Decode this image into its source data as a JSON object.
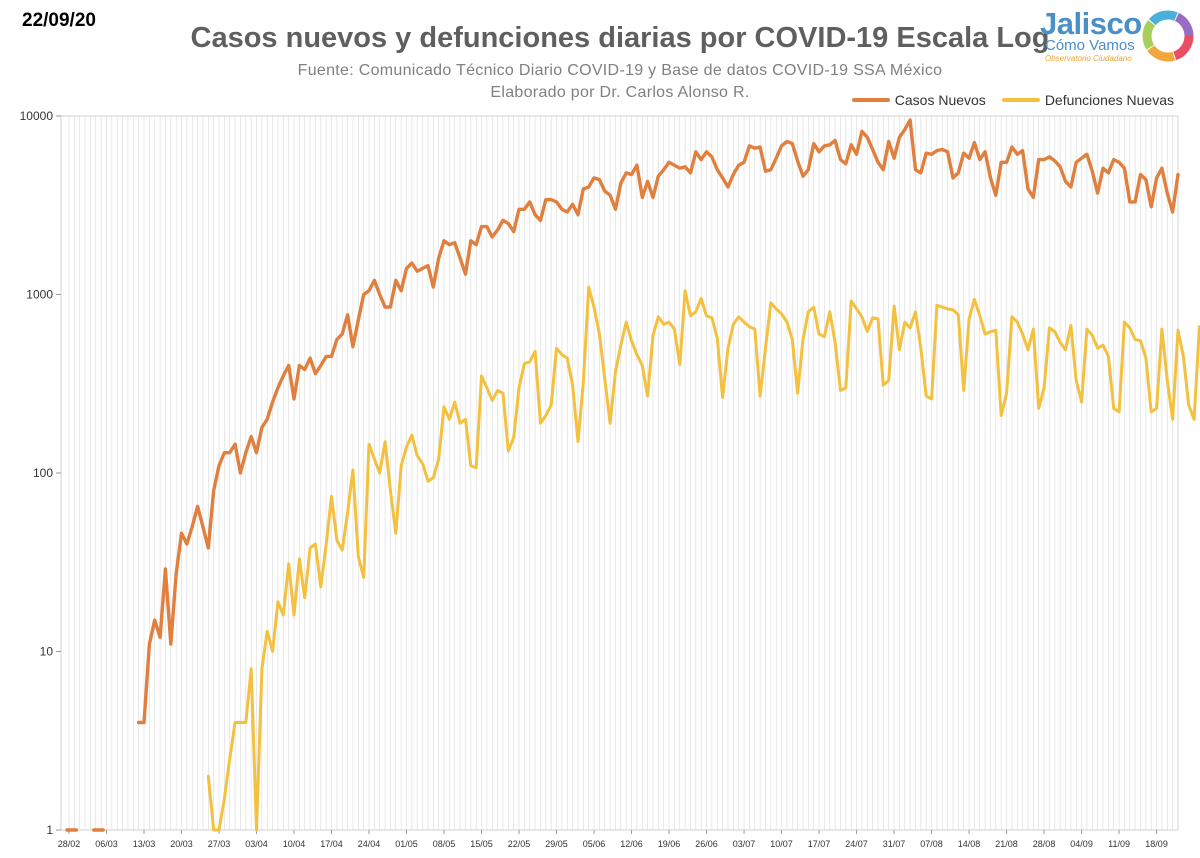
{
  "header": {
    "date": "22/09/20",
    "title": "Casos nuevos y defunciones diarias por COVID-19 Escala Log",
    "subtitle1": "Fuente: Comunicado Técnico Diario COVID-19 y Base de datos COVID-19 SSA México",
    "subtitle2": "Elaborado por Dr. Carlos Alonso R."
  },
  "logo": {
    "main": "Jalisco",
    "sub": "Cómo Vamos",
    "tagline": "Observatorio Ciudadano"
  },
  "colors": {
    "casos": "#e07f3e",
    "defunciones": "#f4c03f",
    "grid": "#d9d9d9"
  },
  "chart_data": {
    "type": "line",
    "title": "Casos nuevos y defunciones diarias por COVID-19 Escala Log",
    "yscale": "log",
    "ylim": [
      1,
      10000
    ],
    "y_ticks": [
      "1",
      "10",
      "100",
      "1000",
      "10000"
    ],
    "x_tick_labels": [
      "28/02",
      "06/03",
      "13/03",
      "20/03",
      "27/03",
      "03/04",
      "10/04",
      "17/04",
      "24/04",
      "01/05",
      "08/05",
      "15/05",
      "22/05",
      "29/05",
      "05/06",
      "12/06",
      "19/06",
      "26/06",
      "03/07",
      "10/07",
      "17/07",
      "24/07",
      "31/07",
      "07/08",
      "14/08",
      "21/08",
      "28/08",
      "04/09",
      "11/09",
      "18/09"
    ],
    "x_start": "2020-02-28",
    "x_end": "2020-09-22",
    "grid": "vertical",
    "legend_position": "top-right",
    "series": [
      {
        "name": "Casos Nuevos",
        "color": "#e07f3e",
        "start": "2020-03-12",
        "values": [
          4,
          4,
          11,
          15,
          12,
          29,
          11,
          27,
          46,
          40,
          50,
          65,
          50,
          38,
          80,
          110,
          130,
          130,
          145,
          100,
          130,
          160,
          130,
          180,
          200,
          250,
          300,
          350,
          400,
          260,
          400,
          380,
          440,
          360,
          400,
          450,
          450,
          560,
          600,
          770,
          510,
          720,
          1000,
          1050,
          1200,
          1000,
          850,
          850,
          1200,
          1050,
          1400,
          1500,
          1350,
          1400,
          1450,
          1100,
          1600,
          2000,
          1900,
          1950,
          1600,
          1300,
          2000,
          1900,
          2400,
          2400,
          2100,
          2300,
          2600,
          2500,
          2250,
          3000,
          3000,
          3300,
          2800,
          2600,
          3400,
          3400,
          3300,
          3000,
          2900,
          3200,
          2800,
          3900,
          4000,
          4500,
          4400,
          3800,
          3600,
          3000,
          4200,
          4800,
          4700,
          5300,
          3500,
          4300,
          3500,
          4600,
          5000,
          5500,
          5300,
          5100,
          5200,
          4800,
          6300,
          5700,
          6300,
          5900,
          5000,
          4500,
          4000,
          4700,
          5300,
          5500,
          6800,
          6600,
          6700,
          4900,
          5000,
          5800,
          6800,
          7200,
          7000,
          5600,
          4600,
          5000,
          7000,
          6300,
          6800,
          6900,
          7300,
          5700,
          5400,
          6900,
          6100,
          8200,
          7600,
          6500,
          5500,
          5000,
          7200,
          5800,
          7600,
          8400,
          9500,
          5000,
          4800,
          6200,
          6100,
          6400,
          6500,
          6300,
          4500,
          4800,
          6200,
          5800,
          7100,
          5700,
          6300,
          4500,
          3600,
          5500,
          5500,
          6700,
          6100,
          6400,
          3900,
          3500,
          5700,
          5700,
          5900,
          5600,
          5200,
          4300,
          4000,
          5500,
          5800,
          6100,
          4900,
          3700,
          5100,
          4800,
          5700,
          5500,
          5100,
          3300,
          3300,
          4700,
          4400,
          3100,
          4500,
          5100,
          3700,
          2900,
          4700
        ]
      },
      {
        "name": "Defunciones Nuevas",
        "color": "#f4c03f",
        "start": "2020-03-25",
        "values": [
          2,
          1,
          1,
          1.5,
          2.5,
          4,
          4,
          4,
          8,
          1,
          8,
          13,
          10,
          19,
          16,
          31,
          16,
          33,
          20,
          38,
          40,
          23,
          40,
          74,
          42,
          37,
          60,
          104,
          34,
          26,
          145,
          120,
          100,
          150,
          80,
          46,
          110,
          140,
          163,
          125,
          113,
          90,
          94,
          120,
          235,
          200,
          250,
          190,
          200,
          110,
          107,
          350,
          300,
          255,
          290,
          280,
          133,
          158,
          300,
          410,
          420,
          480,
          190,
          210,
          240,
          500,
          460,
          440,
          310,
          150,
          320,
          1100,
          850,
          600,
          340,
          190,
          370,
          520,
          700,
          550,
          460,
          400,
          270,
          590,
          750,
          680,
          700,
          640,
          405,
          1050,
          760,
          800,
          950,
          760,
          740,
          570,
          265,
          500,
          680,
          750,
          700,
          660,
          640,
          270,
          500,
          900,
          830,
          780,
          700,
          560,
          280,
          560,
          800,
          850,
          600,
          580,
          800,
          540,
          290,
          300,
          920,
          830,
          750,
          620,
          740,
          730,
          310,
          330,
          860,
          490,
          700,
          650,
          800,
          500,
          270,
          260,
          870,
          850,
          830,
          820,
          770,
          290,
          730,
          940,
          760,
          600,
          620,
          630,
          210,
          280,
          750,
          700,
          600,
          490,
          640,
          230,
          300,
          650,
          620,
          540,
          490,
          670,
          330,
          250,
          640,
          590,
          500,
          520,
          450,
          230,
          220,
          700,
          650,
          560,
          550,
          440,
          220,
          230,
          640,
          330,
          200,
          630,
          450,
          240,
          200,
          660
        ]
      }
    ]
  }
}
